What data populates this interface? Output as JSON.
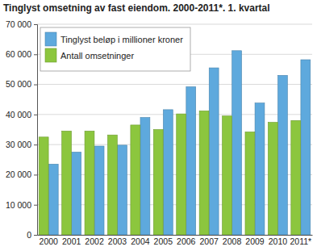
{
  "chart_data": {
    "type": "bar",
    "title": "Tinglyst omsetning av fast eiendom. 2000-2011*. 1. kvartal",
    "categories": [
      "2000",
      "2001",
      "2002",
      "2003",
      "2004",
      "2005",
      "2006",
      "2007",
      "2008",
      "2009",
      "2010",
      "2011*"
    ],
    "series": [
      {
        "name": "Tinglyst beløp i millioner kroner",
        "color": "#5ea9dd",
        "values": [
          23500,
          27500,
          29500,
          29800,
          39000,
          41600,
          49200,
          55500,
          61200,
          43800,
          53000,
          58200
        ]
      },
      {
        "name": "Antall omsetninger",
        "color": "#8cc63e",
        "values": [
          32500,
          34500,
          34500,
          33200,
          36500,
          35000,
          40200,
          41200,
          39500,
          34200,
          37400,
          38000
        ]
      }
    ],
    "ylim": [
      0,
      70000
    ],
    "yticks": [
      0,
      {
        "value": 10000,
        "label": "10 000"
      },
      {
        "value": 20000,
        "label": "20 000"
      },
      {
        "value": 30000,
        "label": "30 000"
      },
      {
        "value": 40000,
        "label": "40 000"
      },
      {
        "value": 50000,
        "label": "50 000"
      },
      {
        "value": 60000,
        "label": "60 000"
      },
      {
        "value": 70000,
        "label": "70 000"
      }
    ],
    "grid": true,
    "legend": "upper left"
  }
}
